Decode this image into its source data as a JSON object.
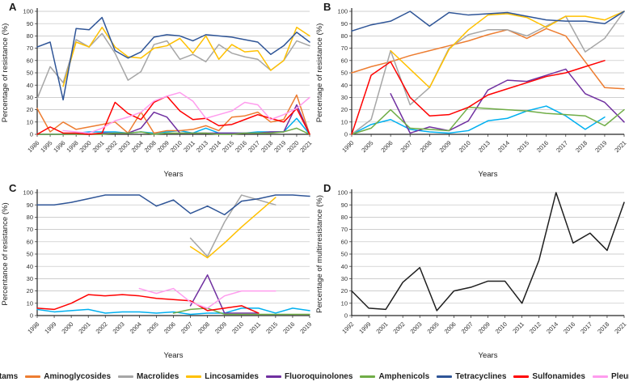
{
  "figure": {
    "xlabel": "Years"
  },
  "legend": {
    "items": [
      {
        "label": "ß-lactams",
        "color": "#00B0F0"
      },
      {
        "label": "Aminoglycosides",
        "color": "#ED7D31"
      },
      {
        "label": "Macrolides",
        "color": "#A6A6A6"
      },
      {
        "label": "Lincosamides",
        "color": "#FFC000"
      },
      {
        "label": "Fluoroquinolones",
        "color": "#7030A0"
      },
      {
        "label": "Amphenicols",
        "color": "#70AD47"
      },
      {
        "label": "Tetracyclines",
        "color": "#2F5597"
      },
      {
        "label": "Sulfonamides",
        "color": "#FF0000"
      },
      {
        "label": "Pleuromutilins",
        "color": "#FF9CEE"
      }
    ]
  },
  "chart_data": [
    {
      "type": "line",
      "label": "A",
      "xlabel": "Years",
      "ylabel": "Percentage of resistance (%)",
      "ylim": [
        0,
        100
      ],
      "ytick_step": 10,
      "grid": true,
      "categories": [
        "1986",
        "1995",
        "1996",
        "1998",
        "2000",
        "2001",
        "2002",
        "2003",
        "2004",
        "2008",
        "2009",
        "2010",
        "2011",
        "2013",
        "2014",
        "2015",
        "2016",
        "2017",
        "2018",
        "2019",
        "2020",
        "2021"
      ],
      "series": [
        {
          "name": "ß-lactams",
          "color": "#00B0F0",
          "values": [
            0,
            0,
            0,
            1,
            2,
            2,
            2,
            1,
            2,
            1,
            2,
            3,
            1,
            5,
            1,
            1,
            1,
            2,
            2,
            2,
            13,
            0
          ]
        },
        {
          "name": "Aminoglycosides",
          "color": "#ED7D31",
          "values": [
            21,
            2,
            10,
            4,
            6,
            8,
            10,
            1,
            18,
            1,
            3,
            3,
            4,
            7,
            3,
            14,
            15,
            18,
            10,
            12,
            32,
            0
          ]
        },
        {
          "name": "Macrolides",
          "color": "#A6A6A6",
          "values": [
            29,
            55,
            42,
            77,
            71,
            82,
            66,
            44,
            51,
            73,
            76,
            61,
            65,
            59,
            73,
            66,
            63,
            61,
            52,
            60,
            76,
            72
          ]
        },
        {
          "name": "Lincosamides",
          "color": "#FFC000",
          "values": [
            null,
            null,
            39,
            75,
            71,
            87,
            71,
            63,
            62,
            70,
            72,
            78,
            66,
            80,
            61,
            73,
            67,
            68,
            52,
            60,
            87,
            80
          ]
        },
        {
          "name": "Fluoroquinolones",
          "color": "#7030A0",
          "values": [
            0,
            0,
            0,
            0,
            0,
            1,
            1,
            1,
            5,
            18,
            14,
            1,
            1,
            1,
            1,
            1,
            1,
            1,
            2,
            2,
            24,
            0
          ]
        },
        {
          "name": "Amphenicols",
          "color": "#70AD47",
          "values": [
            0,
            0,
            0,
            0,
            0,
            0,
            1,
            1,
            2,
            0,
            1,
            1,
            1,
            1,
            0,
            0,
            1,
            1,
            1,
            2,
            5,
            0
          ]
        },
        {
          "name": "Tetracyclines",
          "color": "#2F5597",
          "values": [
            71,
            75,
            28,
            86,
            85,
            95,
            68,
            62,
            67,
            79,
            81,
            80,
            76,
            81,
            80,
            79,
            77,
            75,
            65,
            72,
            83,
            75
          ]
        },
        {
          "name": "Sulfonamides",
          "color": "#FF0000",
          "values": [
            0,
            6,
            1,
            1,
            0,
            1,
            26,
            17,
            12,
            26,
            31,
            19,
            12,
            13,
            7,
            8,
            12,
            16,
            13,
            10,
            21,
            0
          ]
        },
        {
          "name": "Pleuromutilins",
          "color": "#FF9CEE",
          "values": [
            null,
            null,
            3,
            2,
            1,
            5,
            11,
            14,
            18,
            27,
            31,
            34,
            27,
            13,
            16,
            19,
            26,
            24,
            12,
            16,
            21,
            30
          ]
        }
      ]
    },
    {
      "type": "line",
      "label": "B",
      "xlabel": "Years",
      "ylabel": "Percentage of resistance (%)",
      "ylim": [
        0,
        100
      ],
      "ytick_step": 10,
      "grid": true,
      "categories": [
        "1990",
        "2005",
        "2006",
        "2007",
        "2008",
        "2009",
        "2010",
        "2013",
        "2014",
        "2015",
        "2016",
        "2017",
        "2018",
        "2019",
        "2021"
      ],
      "series": [
        {
          "name": "ß-lactams",
          "color": "#00B0F0",
          "values": [
            0,
            8,
            12,
            4,
            2,
            1,
            3,
            11,
            13,
            19,
            23,
            15,
            4,
            14,
            null
          ]
        },
        {
          "name": "Aminoglycosides",
          "color": "#ED7D31",
          "values": [
            50,
            55,
            59,
            64,
            68,
            72,
            76,
            81,
            85,
            78,
            86,
            80,
            59,
            38,
            37
          ]
        },
        {
          "name": "Macrolides",
          "color": "#A6A6A6",
          "values": [
            0,
            12,
            68,
            24,
            38,
            70,
            81,
            85,
            85,
            80,
            88,
            96,
            67,
            78,
            100
          ]
        },
        {
          "name": "Lincosamides",
          "color": "#FFC000",
          "values": [
            null,
            null,
            68,
            53,
            38,
            69,
            85,
            97,
            98,
            95,
            87,
            96,
            96,
            93,
            100
          ]
        },
        {
          "name": "Fluoroquinolones",
          "color": "#7030A0",
          "values": [
            null,
            null,
            33,
            1,
            6,
            3,
            11,
            36,
            44,
            43,
            48,
            53,
            33,
            26,
            10
          ]
        },
        {
          "name": "Amphenicols",
          "color": "#70AD47",
          "values": [
            0,
            5,
            20,
            5,
            4,
            3,
            22,
            21,
            20,
            19,
            17,
            16,
            15,
            7,
            20
          ]
        },
        {
          "name": "Tetracyclines",
          "color": "#2F5597",
          "values": [
            84,
            89,
            92,
            100,
            88,
            99,
            97,
            98,
            99,
            96,
            93,
            92,
            92,
            90,
            100
          ]
        },
        {
          "name": "Sulfonamides",
          "color": "#FF0000",
          "values": [
            0,
            48,
            59,
            30,
            15,
            16,
            22,
            32,
            37,
            42,
            47,
            50,
            55,
            60,
            null
          ]
        }
      ]
    },
    {
      "type": "line",
      "label": "C",
      "xlabel": "Years",
      "ylabel": "Percentance of resistance (%)",
      "ylim": [
        0,
        100
      ],
      "ytick_step": 10,
      "grid": true,
      "categories": [
        "1998",
        "1999",
        "2000",
        "2001",
        "2002",
        "2003",
        "2004",
        "2005",
        "2006",
        "2007",
        "2008",
        "2009",
        "2010",
        "2011",
        "2015",
        "2016",
        "2019"
      ],
      "series": [
        {
          "name": "ß-lactams",
          "color": "#00B0F0",
          "values": [
            5,
            3,
            4,
            5,
            2,
            3,
            3,
            2,
            3,
            1,
            2,
            2,
            6,
            6,
            2,
            6,
            4
          ]
        },
        {
          "name": "Macrolides",
          "color": "#A6A6A6",
          "values": [
            null,
            null,
            null,
            null,
            null,
            null,
            null,
            null,
            null,
            63,
            48,
            76,
            98,
            94,
            90,
            null,
            null
          ]
        },
        {
          "name": "Lincosamides",
          "color": "#FFC000",
          "values": [
            null,
            null,
            null,
            null,
            null,
            null,
            null,
            null,
            null,
            56,
            47,
            59,
            72,
            84,
            96,
            null,
            null
          ]
        },
        {
          "name": "Fluoroquinolones",
          "color": "#7030A0",
          "values": [
            null,
            null,
            null,
            null,
            null,
            null,
            null,
            null,
            null,
            8,
            33,
            2,
            2,
            2,
            null,
            null,
            null
          ]
        },
        {
          "name": "Amphenicols",
          "color": "#70AD47",
          "values": [
            null,
            null,
            null,
            null,
            null,
            null,
            null,
            null,
            2,
            5,
            6,
            1,
            1,
            1,
            1,
            1,
            1
          ]
        },
        {
          "name": "Tetracyclines",
          "color": "#2F5597",
          "values": [
            90,
            90,
            92,
            95,
            98,
            98,
            98,
            89,
            94,
            83,
            89,
            82,
            93,
            95,
            98,
            98,
            97
          ]
        },
        {
          "name": "Sulfonamides",
          "color": "#FF0000",
          "values": [
            6,
            5,
            10,
            17,
            16,
            17,
            16,
            14,
            13,
            12,
            4,
            6,
            8,
            2,
            null,
            null,
            null
          ]
        },
        {
          "name": "Pleuromutilins",
          "color": "#FF9CEE",
          "values": [
            null,
            null,
            null,
            null,
            null,
            null,
            22,
            18,
            22,
            11,
            6,
            16,
            20,
            20,
            20,
            null,
            null
          ]
        }
      ]
    },
    {
      "type": "line",
      "label": "D",
      "xlabel": "Years",
      "ylabel": "Percentage of multirresistance (%)",
      "ylim": [
        0,
        100
      ],
      "ytick_step": 10,
      "grid": true,
      "categories": [
        "1992",
        "1999",
        "2001",
        "2002",
        "2003",
        "2005",
        "2006",
        "2007",
        "2009",
        "2010",
        "2011",
        "2012",
        "2014",
        "2016",
        "2017",
        "2018",
        "2021"
      ],
      "series": [
        {
          "name": "Multiresistance",
          "color": "#1F1F1F",
          "values": [
            20,
            6,
            5,
            27,
            39,
            4,
            20,
            23,
            28,
            28,
            10,
            45,
            100,
            59,
            67,
            53,
            92
          ]
        }
      ]
    }
  ]
}
